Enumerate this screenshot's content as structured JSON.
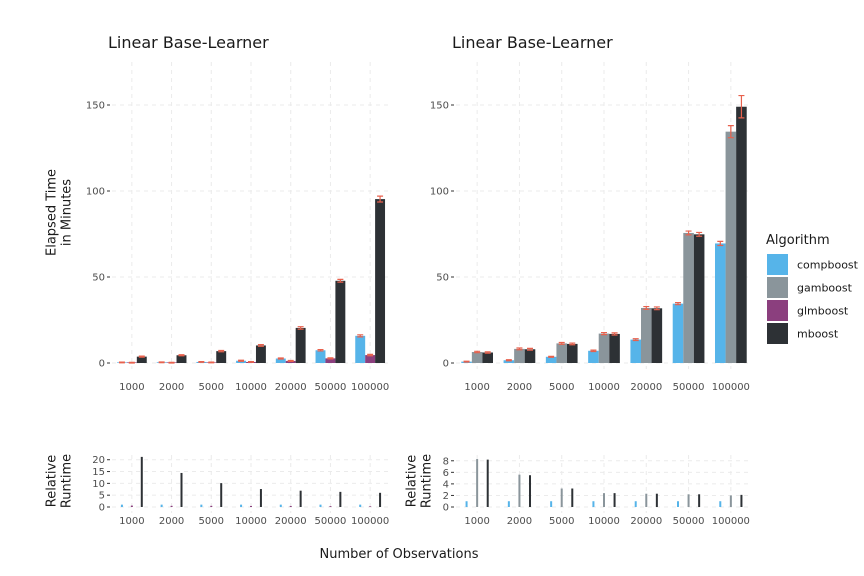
{
  "figure": {
    "xlabel": "Number of Observations"
  },
  "legend": {
    "title": "Algorithm",
    "items": [
      {
        "label": "compboost",
        "color": "#56B4E9"
      },
      {
        "label": "gamboost",
        "color": "#8A959B"
      },
      {
        "label": "glmboost",
        "color": "#8B3F7E"
      },
      {
        "label": "mboost",
        "color": "#2D3135"
      }
    ],
    "placement": "right"
  },
  "chart_data": [
    {
      "type": "bar",
      "title": "Linear Base-Learner",
      "ylabel": "Elapsed Time\nin Minutes",
      "ylim": [
        0,
        175
      ],
      "yticks": [
        0,
        50,
        100,
        150
      ],
      "categories": [
        "1000",
        "2000",
        "5000",
        "10000",
        "20000",
        "50000",
        "100000"
      ],
      "error_color": "#E8614D",
      "series": [
        {
          "name": "compboost",
          "values": [
            0.3,
            0.4,
            0.6,
            1.3,
            2.6,
            7.4,
            15.8
          ],
          "err": [
            0.2,
            0.2,
            0.2,
            0.3,
            0.3,
            0.4,
            0.6
          ]
        },
        {
          "name": "glmboost",
          "values": [
            0.2,
            0.2,
            0.3,
            0.6,
            1.2,
            2.7,
            4.6
          ],
          "err": [
            0.2,
            0.2,
            0.2,
            0.2,
            0.3,
            0.3,
            0.4
          ]
        },
        {
          "name": "mboost",
          "values": [
            3.7,
            4.5,
            6.9,
            10.2,
            20.4,
            47.8,
            95.3
          ],
          "err": [
            0.3,
            0.3,
            0.4,
            0.5,
            0.7,
            0.8,
            1.7
          ]
        }
      ]
    },
    {
      "type": "bar",
      "title": "Linear Base-Learner",
      "ylabel": "",
      "ylim": [
        0,
        175
      ],
      "yticks": [
        0,
        50,
        100,
        150
      ],
      "categories": [
        "1000",
        "2000",
        "5000",
        "10000",
        "20000",
        "50000",
        "100000"
      ],
      "error_color": "#E8614D",
      "series": [
        {
          "name": "compboost",
          "values": [
            0.8,
            1.6,
            3.6,
            7.1,
            13.6,
            34.5,
            69.5
          ],
          "err": [
            0.2,
            0.3,
            0.3,
            0.4,
            0.5,
            0.6,
            1.2
          ]
        },
        {
          "name": "gamboost",
          "values": [
            6.4,
            8.2,
            11.4,
            17.1,
            32.0,
            75.6,
            134.5
          ],
          "err": [
            0.4,
            0.5,
            0.5,
            0.6,
            0.8,
            1.1,
            3.5
          ]
        },
        {
          "name": "mboost",
          "values": [
            6.1,
            8.0,
            11.1,
            16.9,
            31.8,
            74.8,
            149.0
          ],
          "err": [
            0.4,
            0.5,
            0.5,
            0.6,
            0.8,
            1.1,
            6.5
          ]
        }
      ]
    },
    {
      "type": "bar",
      "title": "",
      "ylabel": "Relative\nRuntime",
      "ylim": [
        0,
        22
      ],
      "yticks": [
        0,
        5,
        10,
        15,
        20
      ],
      "categories": [
        "1000",
        "2000",
        "5000",
        "10000",
        "20000",
        "50000",
        "100000"
      ],
      "series": [
        {
          "name": "compboost",
          "values": [
            1,
            1,
            1,
            1,
            1,
            1,
            1
          ]
        },
        {
          "name": "glmboost",
          "values": [
            0.6,
            0.5,
            0.5,
            0.45,
            0.45,
            0.37,
            0.29
          ]
        },
        {
          "name": "mboost",
          "values": [
            21.2,
            14.4,
            10.1,
            7.6,
            6.9,
            6.4,
            6.0
          ]
        }
      ]
    },
    {
      "type": "bar",
      "title": "",
      "ylabel": "Relative\nRuntime",
      "ylim": [
        0,
        9
      ],
      "yticks": [
        0,
        2,
        4,
        6,
        8
      ],
      "categories": [
        "1000",
        "2000",
        "5000",
        "10000",
        "20000",
        "50000",
        "100000"
      ],
      "series": [
        {
          "name": "compboost",
          "values": [
            1,
            1,
            1,
            1,
            1,
            1,
            1
          ]
        },
        {
          "name": "gamboost",
          "values": [
            8.3,
            5.6,
            3.2,
            2.4,
            2.3,
            2.2,
            2.0
          ]
        },
        {
          "name": "mboost",
          "values": [
            8.2,
            5.5,
            3.2,
            2.4,
            2.3,
            2.2,
            2.1
          ]
        }
      ]
    }
  ]
}
